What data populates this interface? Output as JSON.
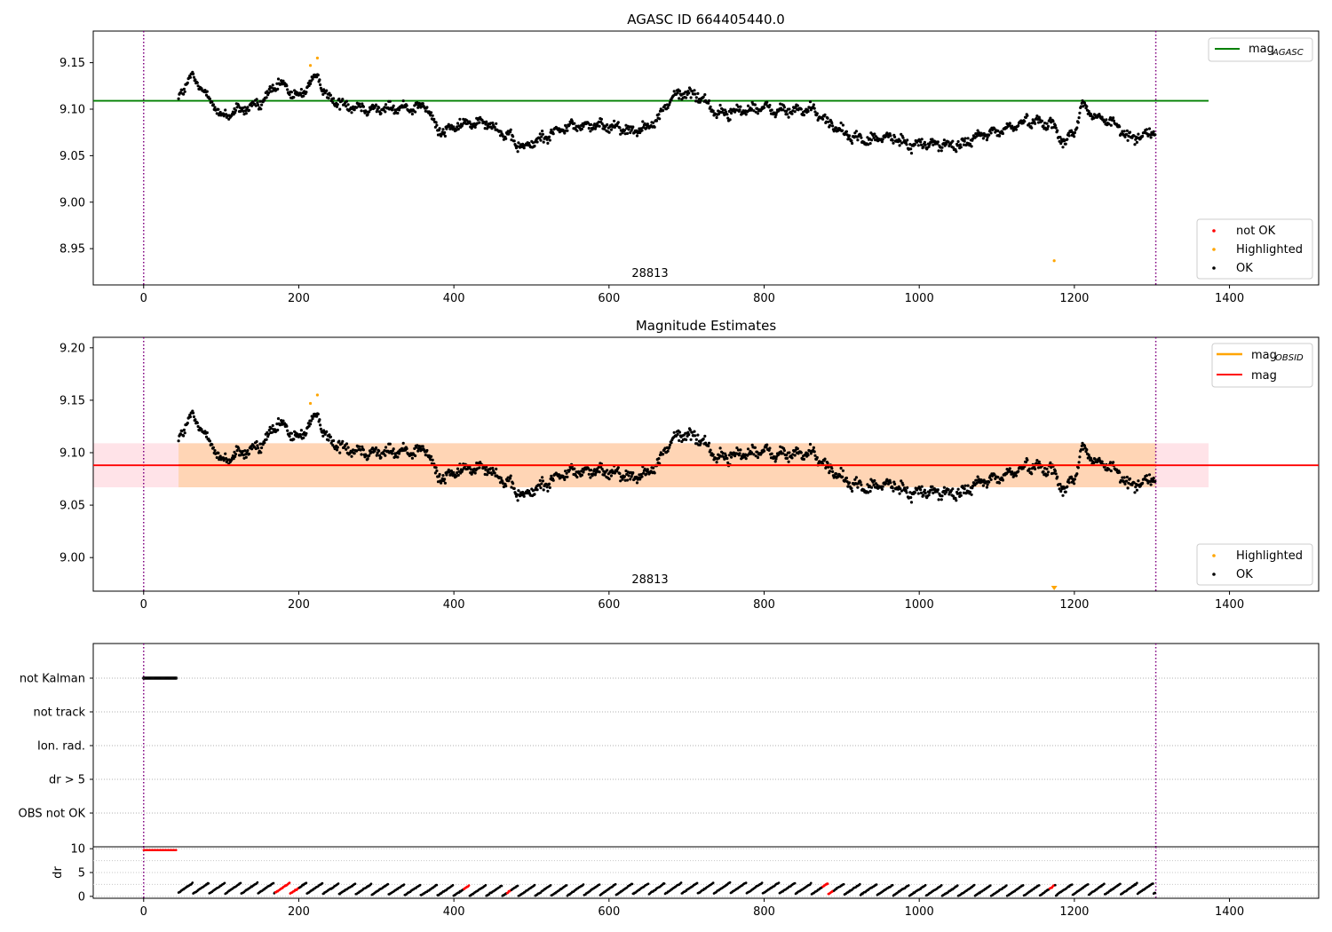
{
  "chart_data": [
    {
      "type": "scatter",
      "title": "AGASC ID 664405440.0",
      "xlabel": "",
      "ylabel": "",
      "xlim": [
        -65,
        1515
      ],
      "ylim": [
        8.911,
        9.184
      ],
      "xticks": [
        "0",
        "200",
        "400",
        "600",
        "800",
        "1000",
        "1200",
        "1400"
      ],
      "yticks": [
        "8.95",
        "9.00",
        "9.05",
        "9.10",
        "9.15"
      ],
      "grid": false,
      "vlines": [
        0,
        1305
      ],
      "annotation": "28813",
      "reference_line": {
        "name": "mag_AGASC",
        "y": 9.109,
        "x": [
          -65,
          1373
        ],
        "color": "#008000"
      },
      "legend_lines": [
        {
          "label_main": "mag",
          "label_sub": "AGASC",
          "color": "#008000"
        }
      ],
      "legend_points": [
        {
          "label": "not OK",
          "color": "#ff0000"
        },
        {
          "label": "Highlighted",
          "color": "#ffa500"
        },
        {
          "label": "OK",
          "color": "#000000"
        }
      ],
      "trend": [
        [
          45,
          9.112
        ],
        [
          60,
          9.135
        ],
        [
          80,
          9.118
        ],
        [
          100,
          9.092
        ],
        [
          120,
          9.098
        ],
        [
          150,
          9.106
        ],
        [
          175,
          9.128
        ],
        [
          200,
          9.112
        ],
        [
          215,
          9.13
        ],
        [
          225,
          9.133
        ],
        [
          240,
          9.11
        ],
        [
          270,
          9.103
        ],
        [
          300,
          9.1
        ],
        [
          330,
          9.101
        ],
        [
          365,
          9.103
        ],
        [
          380,
          9.075
        ],
        [
          410,
          9.083
        ],
        [
          440,
          9.088
        ],
        [
          470,
          9.07
        ],
        [
          490,
          9.058
        ],
        [
          520,
          9.072
        ],
        [
          550,
          9.082
        ],
        [
          580,
          9.082
        ],
        [
          610,
          9.082
        ],
        [
          630,
          9.076
        ],
        [
          660,
          9.086
        ],
        [
          680,
          9.112
        ],
        [
          700,
          9.118
        ],
        [
          720,
          9.112
        ],
        [
          740,
          9.095
        ],
        [
          760,
          9.097
        ],
        [
          790,
          9.102
        ],
        [
          820,
          9.098
        ],
        [
          860,
          9.1
        ],
        [
          880,
          9.088
        ],
        [
          900,
          9.075
        ],
        [
          930,
          9.066
        ],
        [
          960,
          9.07
        ],
        [
          990,
          9.062
        ],
        [
          1020,
          9.063
        ],
        [
          1050,
          9.06
        ],
        [
          1080,
          9.072
        ],
        [
          1110,
          9.078
        ],
        [
          1140,
          9.088
        ],
        [
          1170,
          9.085
        ],
        [
          1185,
          9.065
        ],
        [
          1200,
          9.075
        ],
        [
          1210,
          9.105
        ],
        [
          1225,
          9.092
        ],
        [
          1250,
          9.085
        ],
        [
          1270,
          9.07
        ],
        [
          1290,
          9.072
        ],
        [
          1305,
          9.078
        ]
      ],
      "highlighted": [
        [
          215,
          9.147
        ],
        [
          224,
          9.155
        ],
        [
          1174,
          8.937
        ]
      ],
      "not_ok": []
    },
    {
      "type": "scatter",
      "title": "Magnitude Estimates",
      "xlabel": "",
      "ylabel": "",
      "xlim": [
        -65,
        1515
      ],
      "ylim": [
        8.968,
        9.21
      ],
      "xticks": [
        "0",
        "200",
        "400",
        "600",
        "800",
        "1000",
        "1200",
        "1400"
      ],
      "yticks": [
        "9.00",
        "9.05",
        "9.10",
        "9.15",
        "9.20"
      ],
      "grid": false,
      "vlines": [
        0,
        1305
      ],
      "annotation": "28813",
      "mag_line": {
        "name": "mag",
        "y": 9.088,
        "color": "#ff0000"
      },
      "mag_obsid_line": {
        "name": "mag_OBSID",
        "y": 9.088,
        "x": [
          45,
          1305
        ],
        "color": "#ffa500"
      },
      "band": {
        "lo": 9.067,
        "hi": 9.109,
        "x": [
          -65,
          1373
        ]
      },
      "legend_lines": [
        {
          "label_main": "mag",
          "label_sub": "OBSID",
          "color": "#ffa500"
        },
        {
          "label_main": "mag",
          "label_sub": "",
          "color": "#ff0000"
        }
      ],
      "legend_points": [
        {
          "label": "Highlighted",
          "color": "#ffa500"
        },
        {
          "label": "OK",
          "color": "#000000"
        }
      ],
      "highlighted": [
        [
          215,
          9.147
        ],
        [
          224,
          9.155
        ]
      ],
      "below_range_marker": {
        "x": 1174,
        "color": "#ffa500"
      }
    },
    {
      "type": "scatter",
      "title": "",
      "xlim": [
        -65,
        1515
      ],
      "categories": [
        "not Kalman",
        "not track",
        "Ion. rad.",
        "dr > 5",
        "OBS not OK"
      ],
      "flag_points": {
        "category": "not Kalman",
        "x_range": [
          0,
          43
        ],
        "color": "#000000"
      },
      "grid": "horizontal-dotted",
      "vlines": [
        0,
        1305
      ]
    },
    {
      "type": "scatter",
      "title": "",
      "ylabel": "dr",
      "xlim": [
        -65,
        1515
      ],
      "ylim": [
        -0.4,
        10.4
      ],
      "xticks": [
        "0",
        "200",
        "400",
        "600",
        "800",
        "1000",
        "1200",
        "1400"
      ],
      "yticks": [
        "0",
        "5",
        "10"
      ],
      "vlines": [
        0,
        1305
      ],
      "flag_points": {
        "y": 9.7,
        "x_range": [
          0,
          43
        ],
        "color": "#ff0000"
      },
      "red_segments": [
        [
          170,
          200
        ],
        [
          413,
          420
        ],
        [
          468,
          474
        ],
        [
          875,
          890
        ],
        [
          1168,
          1175
        ]
      ],
      "x_range": [
        45,
        1305
      ]
    }
  ]
}
